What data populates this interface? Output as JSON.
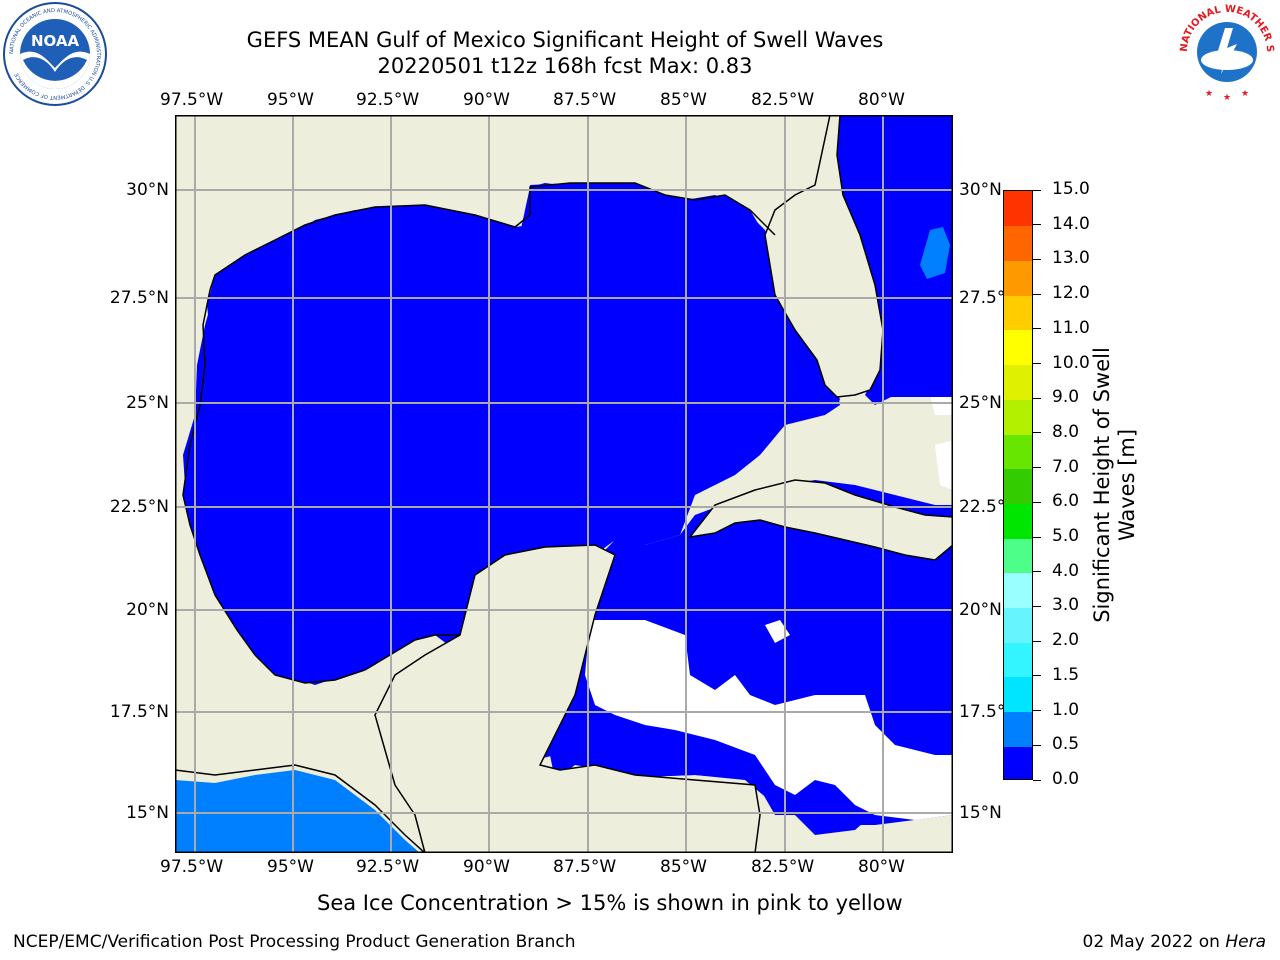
{
  "title": {
    "line1": "GEFS MEAN Gulf of Mexico Significant Height of Swell Waves",
    "line2": "20220501 t12z 168h fcst   Max: 0.83"
  },
  "logos": {
    "left": "noaa-logo",
    "left_text": "NOAA",
    "left_ring_text": "NATIONAL OCEANIC AND ATMOSPHERIC ADMINISTRATION U.S. DEPARTMENT OF COMMERCE",
    "right": "nws-logo",
    "right_ring_text": "NATIONAL WEATHER SERVICE"
  },
  "map": {
    "lon_labels": [
      "97.5°W",
      "95°W",
      "92.5°W",
      "90°W",
      "87.5°W",
      "85°W",
      "82.5°W",
      "80°W"
    ],
    "lat_labels": [
      "30°N",
      "27.5°N",
      "25°N",
      "22.5°N",
      "20°N",
      "17.5°N",
      "15°N"
    ],
    "lon_values": [
      -97.5,
      -95,
      -92.5,
      -90,
      -87.5,
      -85,
      -82.5,
      -80
    ],
    "lat_values": [
      30,
      27.5,
      25,
      22.5,
      20,
      17.5,
      15
    ],
    "grid": true,
    "colors": {
      "land": "#eeeedd",
      "water": "#0000ff",
      "no_data": "#ffffff",
      "gridline": "#aaaaaa",
      "coast": "#000000"
    }
  },
  "colorbar": {
    "title": "Significant Height of Swell Waves [m]",
    "title_line1": "Significant Height of Swell",
    "title_line2": "Waves [m]",
    "ticks": [
      "0.0",
      "0.5",
      "1.0",
      "1.5",
      "2.0",
      "3.0",
      "4.0",
      "5.0",
      "6.0",
      "7.0",
      "8.0",
      "9.0",
      "10.0",
      "11.0",
      "12.0",
      "13.0",
      "14.0",
      "15.0"
    ],
    "colors": [
      "#0000ff",
      "#0080ff",
      "#00e5ff",
      "#33f5ff",
      "#66f5ff",
      "#99ffff",
      "#4dff88",
      "#00e600",
      "#33cc00",
      "#66e600",
      "#b3f000",
      "#dff000",
      "#ffff00",
      "#ffcc00",
      "#ff9900",
      "#ff6600",
      "#ff3300",
      "#ff0000"
    ]
  },
  "note": "Sea Ice Concentration > 15% is shown in pink to yellow",
  "footer": {
    "left": "NCEP/EMC/Verification Post Processing Product Generation Branch",
    "right_date": "02 May 2022 on ",
    "right_machine": "Hera"
  }
}
